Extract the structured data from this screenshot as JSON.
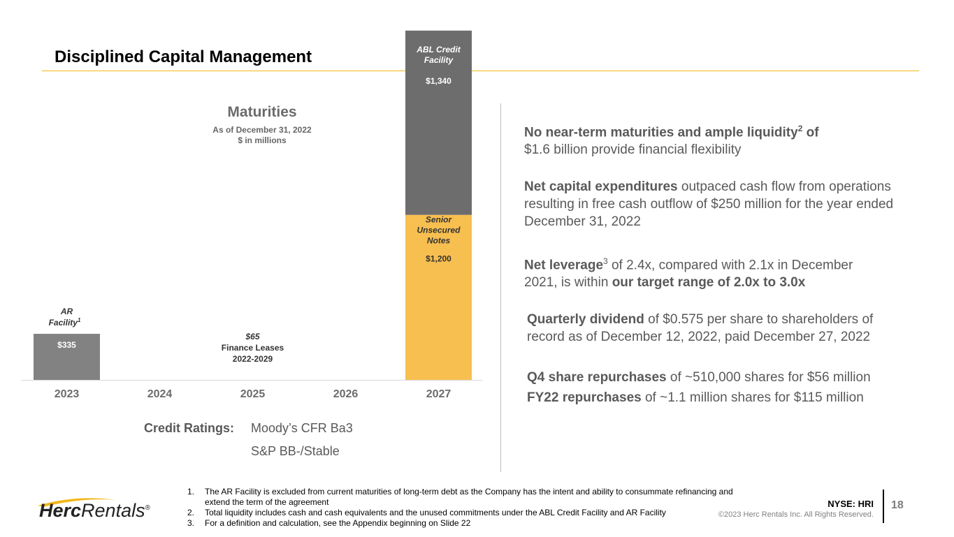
{
  "slide": {
    "title": "Disciplined Capital Management",
    "page_number": "18",
    "ticker": "NYSE: HRI",
    "copyright": "©2023 Herc Rentals Inc.  All Rights Reserved.",
    "brand": {
      "herc": "Herc",
      "rentals": "Rentals",
      "registered": "®"
    }
  },
  "colors": {
    "accent": "#f2b81b",
    "bar_dark": "#6d6d6d",
    "bar_gold": "#f7bf4f",
    "bar_gray": "#828282"
  },
  "chart_data": {
    "type": "bar",
    "stacked": true,
    "title": "Maturities",
    "subtitle_lines": [
      "As of December 31, 2022",
      "$ in millions"
    ],
    "categories": [
      "2023",
      "2024",
      "2025",
      "2026",
      "2027"
    ],
    "ylim": [
      0,
      2600
    ],
    "series": [
      {
        "name": "AR Facility",
        "label_lines": [
          "AR",
          "Facility"
        ],
        "superscript": "1",
        "values": [
          335,
          0,
          0,
          0,
          0
        ],
        "value_label": "$335",
        "color": "#828282"
      },
      {
        "name": "Finance Leases",
        "label_lines": [
          "$65",
          "Finance Leases",
          "2022-2029"
        ],
        "values": [
          0,
          0,
          0,
          0,
          0
        ]
      },
      {
        "name": "Senior Unsecured Notes",
        "label_lines": [
          "Senior",
          "Unsecured",
          "Notes"
        ],
        "values": [
          0,
          0,
          0,
          0,
          1200
        ],
        "value_label": "$1,200",
        "color": "#f7bf4f"
      },
      {
        "name": "ABL Credit Facility",
        "label_lines": [
          "ABL Credit",
          "Facility"
        ],
        "values": [
          0,
          0,
          0,
          0,
          1340
        ],
        "value_label": "$1,340",
        "color": "#6d6d6d"
      }
    ]
  },
  "credit": {
    "label": "Credit Ratings:",
    "ratings": [
      "Moody’s CFR Ba3",
      "S&P BB-/Stable"
    ]
  },
  "bullets": [
    {
      "bold": "No near-term maturities and ample liquidity",
      "sup": "2",
      "bold_tail": " of",
      "text": "$1.6 billion provide financial flexibility"
    },
    {
      "bold": "Net capital expenditures",
      "text": " outpaced cash flow from operations resulting in free cash outflow of $250 million for the year ended December 31, 2022"
    },
    {
      "bold": "Net leverage",
      "sup": "3",
      "text": " of 2.4x, compared with 2.1x in December 2021, is within ",
      "bold2": "our target range of 2.0x to 3.0x"
    },
    {
      "bold": "Quarterly dividend",
      "text": " of $0.575 per share to shareholders of record as of December 12, 2022, paid December 27, 2022"
    },
    {
      "bold": "Q4 share repurchases",
      "text": " of ~510,000 shares for $56 million"
    },
    {
      "bold": "FY22 repurchases",
      "text": " of ~1.1 million shares for $115 million"
    }
  ],
  "footnotes": [
    {
      "n": "1.",
      "text": "The AR Facility is excluded from current maturities of long-term debt as the Company has the intent and ability to consummate refinancing and extend the term of the agreement"
    },
    {
      "n": "2.",
      "text": "Total liquidity includes cash and cash equivalents and the unused commitments under the ABL Credit Facility and AR Facility"
    },
    {
      "n": "3.",
      "text": "For a definition and calculation, see the Appendix beginning on Slide 22"
    }
  ]
}
